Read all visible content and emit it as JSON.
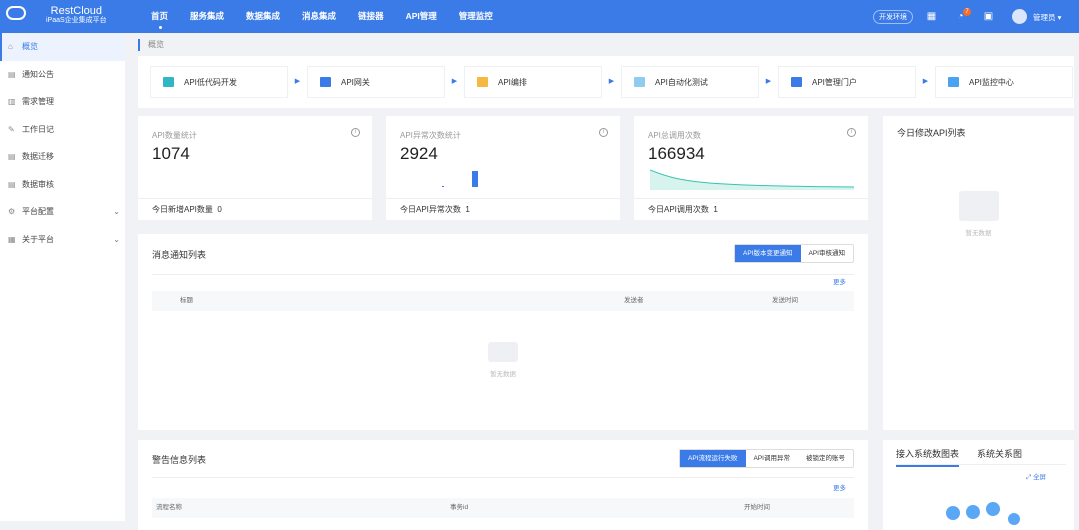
{
  "header": {
    "brand": "RestCloud",
    "subtitle": "iPaaS企业集成平台",
    "nav": [
      "首页",
      "服务集成",
      "数据集成",
      "消息集成",
      "链接器",
      "API管理",
      "管理监控"
    ],
    "env": "开发环境",
    "notify_count": "7",
    "user": "管理员"
  },
  "sidebar": {
    "items": [
      {
        "label": "概览",
        "icon": "home-icon"
      },
      {
        "label": "通知公告",
        "icon": "notice-icon"
      },
      {
        "label": "需求管理",
        "icon": "requirement-icon"
      },
      {
        "label": "工作日记",
        "icon": "pin-icon"
      },
      {
        "label": "数据迁移",
        "icon": "migrate-icon"
      },
      {
        "label": "数据审核",
        "icon": "audit-icon"
      },
      {
        "label": "平台配置",
        "icon": "gear-icon"
      },
      {
        "label": "关于平台",
        "icon": "grid-icon"
      }
    ]
  },
  "breadcrumb": "概览",
  "quick_links": [
    "API低代码开发",
    "API网关",
    "API编排",
    "API自动化测试",
    "API管理门户",
    "API监控中心"
  ],
  "stats": [
    {
      "label": "API数量统计",
      "value": "1074",
      "foot": "今日新增API数量",
      "foot_value": "0"
    },
    {
      "label": "API异常次数统计",
      "value": "2924",
      "foot": "今日API异常次数",
      "foot_value": "1"
    },
    {
      "label": "API总调用次数",
      "value": "166934",
      "foot": "今日API调用次数",
      "foot_value": "1"
    }
  ],
  "recent": {
    "title": "今日修改API列表",
    "empty": "暂无数据"
  },
  "messages": {
    "title": "消息通知列表",
    "tabs": [
      "API版本变更通知",
      "API审核通知"
    ],
    "more": "更多",
    "columns": [
      "标题",
      "发送者",
      "发送时间"
    ],
    "empty": "暂无数据"
  },
  "warnings": {
    "title": "警告信息列表",
    "tabs": [
      "API流程运行失败",
      "API调用异常",
      "被锁定的账号"
    ],
    "more": "更多",
    "columns": [
      "流程名称",
      "事务id",
      "开始时间"
    ]
  },
  "systems": {
    "tabs": [
      "接入系统数图表",
      "系统关系图"
    ],
    "fullscreen": "全屏"
  },
  "colors": {
    "primary": "#3a7be8",
    "badge": "#f56c2a"
  }
}
